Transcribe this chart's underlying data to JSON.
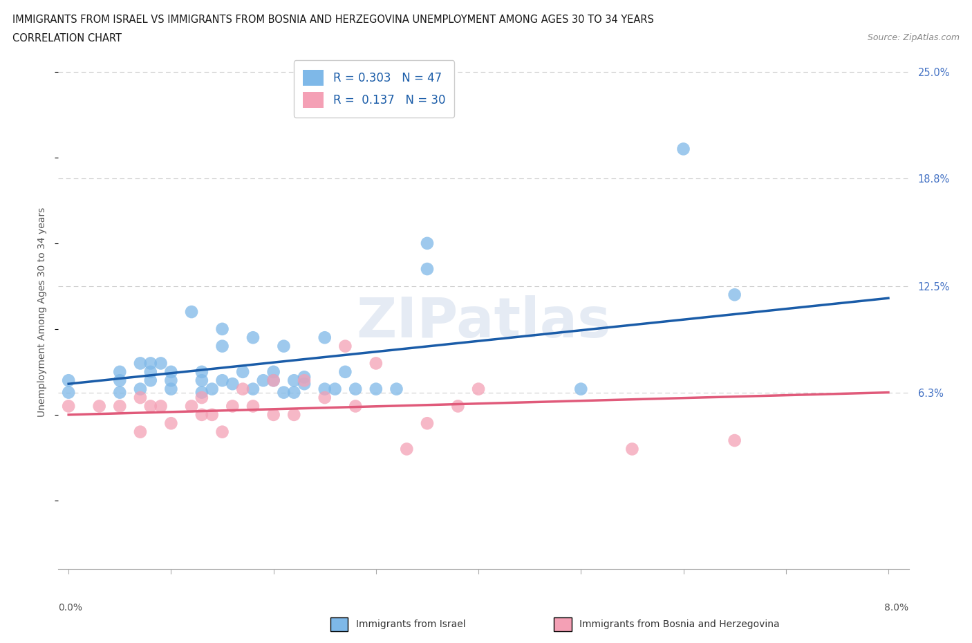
{
  "title_line1": "IMMIGRANTS FROM ISRAEL VS IMMIGRANTS FROM BOSNIA AND HERZEGOVINA UNEMPLOYMENT AMONG AGES 30 TO 34 YEARS",
  "title_line2": "CORRELATION CHART",
  "source": "Source: ZipAtlas.com",
  "ylabel": "Unemployment Among Ages 30 to 34 years",
  "xlim": [
    -0.001,
    0.082
  ],
  "ylim": [
    -0.04,
    0.26
  ],
  "xticks": [
    0.0,
    0.01,
    0.02,
    0.03,
    0.04,
    0.05,
    0.06,
    0.07,
    0.08
  ],
  "ytick_labels_right": [
    "25.0%",
    "18.8%",
    "12.5%",
    "6.3%"
  ],
  "ytick_positions": [
    0.25,
    0.188,
    0.125,
    0.063
  ],
  "grid_color": "#cccccc",
  "background_color": "#ffffff",
  "watermark": "ZIPatlas",
  "legend_r1": "R = 0.303   N = 47",
  "legend_r2": "R =  0.137   N = 30",
  "color_israel": "#7eb8e8",
  "color_bosnia": "#f4a0b5",
  "line_color_israel": "#1a5ca8",
  "line_color_bosnia": "#e05a7a",
  "israel_scatter_x": [
    0.0,
    0.0,
    0.005,
    0.005,
    0.005,
    0.007,
    0.007,
    0.008,
    0.008,
    0.008,
    0.009,
    0.01,
    0.01,
    0.01,
    0.012,
    0.013,
    0.013,
    0.013,
    0.014,
    0.015,
    0.015,
    0.015,
    0.016,
    0.017,
    0.018,
    0.018,
    0.019,
    0.02,
    0.02,
    0.021,
    0.021,
    0.022,
    0.022,
    0.023,
    0.023,
    0.025,
    0.025,
    0.026,
    0.027,
    0.028,
    0.03,
    0.032,
    0.035,
    0.035,
    0.05,
    0.06,
    0.065
  ],
  "israel_scatter_y": [
    0.063,
    0.07,
    0.063,
    0.07,
    0.075,
    0.065,
    0.08,
    0.07,
    0.075,
    0.08,
    0.08,
    0.065,
    0.07,
    0.075,
    0.11,
    0.063,
    0.07,
    0.075,
    0.065,
    0.07,
    0.09,
    0.1,
    0.068,
    0.075,
    0.065,
    0.095,
    0.07,
    0.07,
    0.075,
    0.063,
    0.09,
    0.063,
    0.07,
    0.068,
    0.072,
    0.065,
    0.095,
    0.065,
    0.075,
    0.065,
    0.065,
    0.065,
    0.135,
    0.15,
    0.065,
    0.205,
    0.12
  ],
  "bosnia_scatter_x": [
    0.0,
    0.003,
    0.005,
    0.007,
    0.007,
    0.008,
    0.009,
    0.01,
    0.012,
    0.013,
    0.013,
    0.014,
    0.015,
    0.016,
    0.017,
    0.018,
    0.02,
    0.02,
    0.022,
    0.023,
    0.025,
    0.027,
    0.028,
    0.03,
    0.033,
    0.035,
    0.038,
    0.04,
    0.055,
    0.065
  ],
  "bosnia_scatter_y": [
    0.055,
    0.055,
    0.055,
    0.06,
    0.04,
    0.055,
    0.055,
    0.045,
    0.055,
    0.06,
    0.05,
    0.05,
    0.04,
    0.055,
    0.065,
    0.055,
    0.07,
    0.05,
    0.05,
    0.07,
    0.06,
    0.09,
    0.055,
    0.08,
    0.03,
    0.045,
    0.055,
    0.065,
    0.03,
    0.035
  ],
  "israel_trend_x": [
    0.0,
    0.08
  ],
  "israel_trend_y": [
    0.068,
    0.118
  ],
  "bosnia_trend_x": [
    0.0,
    0.08
  ],
  "bosnia_trend_y": [
    0.05,
    0.063
  ],
  "bottom_legend_israel": "Immigrants from Israel",
  "bottom_legend_bosnia": "Immigrants from Bosnia and Herzegovina"
}
